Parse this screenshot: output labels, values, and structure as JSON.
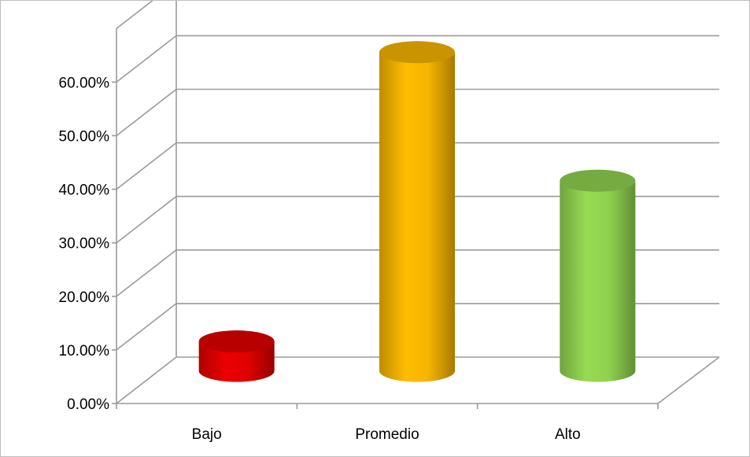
{
  "chart_data": {
    "type": "bar",
    "style": "3d-cylinder",
    "categories": [
      "Bajo",
      "Promedio",
      "Alto"
    ],
    "values": [
      5.5,
      59.5,
      35.5
    ],
    "colors": [
      "#e00000",
      "#f5b400",
      "#8fd14f"
    ],
    "ylim": [
      0,
      70
    ],
    "ytick_step": 10,
    "ytick_labels": [
      "0.00%",
      "10.00%",
      "20.00%",
      "30.00%",
      "40.00%",
      "50.00%",
      "60.00%"
    ],
    "grid": true,
    "legend": "none",
    "title": "",
    "xlabel": "",
    "ylabel": ""
  }
}
